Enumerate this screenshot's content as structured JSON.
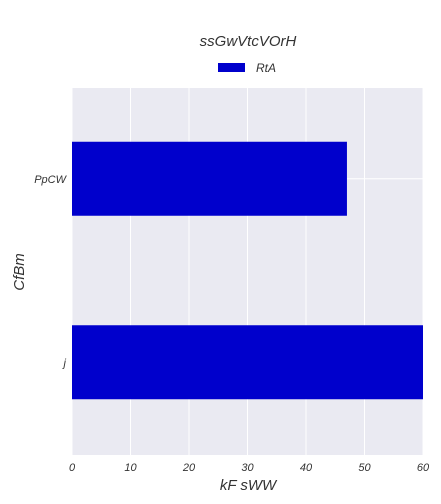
{
  "chart_data": {
    "type": "bar",
    "orientation": "horizontal",
    "title": "ssGwVtcVOrH",
    "xlabel": "kF sWW",
    "ylabel": "CfBm",
    "categories": [
      "PpCW",
      "j"
    ],
    "series": [
      {
        "name": "RtA",
        "values": [
          47,
          60
        ],
        "color": "#0000cc"
      }
    ],
    "xlim": [
      0,
      60
    ],
    "xticks": [
      0,
      10,
      20,
      30,
      40,
      50,
      60
    ],
    "grid": true,
    "legend_position": "top-center",
    "background_color": "#eaeaf2",
    "grid_color": "#ffffff"
  }
}
